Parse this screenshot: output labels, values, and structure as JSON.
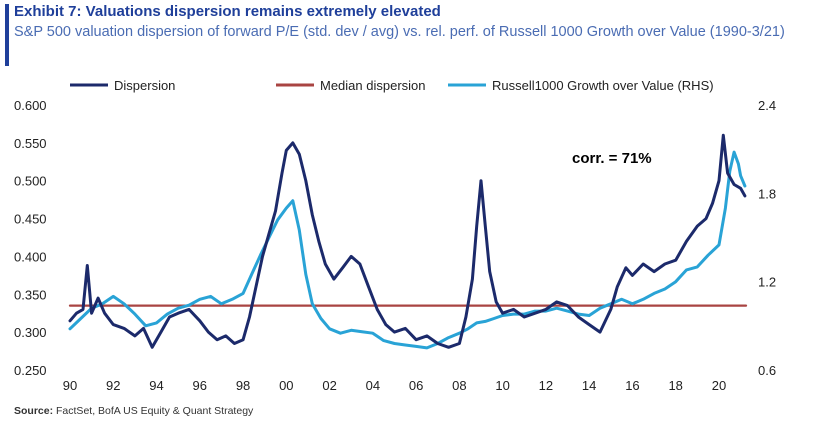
{
  "header": {
    "title": "Exhibit 7: Valuations dispersion remains extremely elevated",
    "subtitle": "S&P 500 valuation dispersion of forward P/E (std. dev / avg) vs. rel. perf. of Russell 1000 Growth over Value (1990-3/21)"
  },
  "footer": {
    "source_label": "Source:",
    "source_text": "FactSet, BofA US Equity & Quant Strategy"
  },
  "chart_data": {
    "type": "line",
    "title": "Exhibit 7: Valuations dispersion remains extremely elevated",
    "subtitle": "S&P 500 valuation dispersion of forward P/E (std. dev / avg) vs. rel. perf. of Russell 1000 Growth over Value (1990-3/21)",
    "xlim": [
      1990,
      2021.25
    ],
    "x_ticks": [
      1990,
      1992,
      1994,
      1996,
      1998,
      2000,
      2002,
      2004,
      2006,
      2008,
      2010,
      2012,
      2014,
      2016,
      2018,
      2020
    ],
    "x_tick_labels": [
      "90",
      "92",
      "94",
      "96",
      "98",
      "00",
      "02",
      "04",
      "06",
      "08",
      "10",
      "12",
      "14",
      "16",
      "18",
      "20"
    ],
    "y_left": {
      "lim": [
        0.25,
        0.6
      ],
      "ticks": [
        "0.250",
        "0.300",
        "0.350",
        "0.400",
        "0.450",
        "0.500",
        "0.550",
        "0.600"
      ]
    },
    "y_right": {
      "lim": [
        0.6,
        2.4
      ],
      "ticks": [
        "0.6",
        "1.2",
        "1.8",
        "2.4"
      ]
    },
    "grid": false,
    "legend_position": "top",
    "annotation": "corr. = 71%",
    "series": [
      {
        "name": "Dispersion",
        "axis": "left",
        "color": "#1c2a6b",
        "points": [
          [
            1990,
            0.315
          ],
          [
            1990.3,
            0.325
          ],
          [
            1990.6,
            0.33
          ],
          [
            1990.8,
            0.388
          ],
          [
            1991.0,
            0.325
          ],
          [
            1991.3,
            0.345
          ],
          [
            1991.6,
            0.325
          ],
          [
            1992.0,
            0.31
          ],
          [
            1992.5,
            0.305
          ],
          [
            1993.0,
            0.295
          ],
          [
            1993.4,
            0.305
          ],
          [
            1993.8,
            0.28
          ],
          [
            1994.2,
            0.3
          ],
          [
            1994.6,
            0.32
          ],
          [
            1995.0,
            0.325
          ],
          [
            1995.5,
            0.33
          ],
          [
            1996.0,
            0.315
          ],
          [
            1996.4,
            0.3
          ],
          [
            1996.8,
            0.29
          ],
          [
            1997.2,
            0.295
          ],
          [
            1997.6,
            0.285
          ],
          [
            1998.0,
            0.29
          ],
          [
            1998.3,
            0.32
          ],
          [
            1998.6,
            0.36
          ],
          [
            1998.9,
            0.4
          ],
          [
            1999.2,
            0.43
          ],
          [
            1999.5,
            0.46
          ],
          [
            1999.8,
            0.51
          ],
          [
            2000.0,
            0.54
          ],
          [
            2000.3,
            0.55
          ],
          [
            2000.6,
            0.535
          ],
          [
            2000.9,
            0.5
          ],
          [
            2001.2,
            0.455
          ],
          [
            2001.5,
            0.42
          ],
          [
            2001.8,
            0.39
          ],
          [
            2002.2,
            0.37
          ],
          [
            2002.6,
            0.385
          ],
          [
            2003.0,
            0.4
          ],
          [
            2003.4,
            0.39
          ],
          [
            2003.8,
            0.36
          ],
          [
            2004.2,
            0.33
          ],
          [
            2004.6,
            0.31
          ],
          [
            2005.0,
            0.3
          ],
          [
            2005.5,
            0.305
          ],
          [
            2006.0,
            0.29
          ],
          [
            2006.5,
            0.295
          ],
          [
            2007.0,
            0.285
          ],
          [
            2007.5,
            0.28
          ],
          [
            2008.0,
            0.285
          ],
          [
            2008.3,
            0.32
          ],
          [
            2008.6,
            0.37
          ],
          [
            2008.8,
            0.44
          ],
          [
            2009.0,
            0.5
          ],
          [
            2009.2,
            0.44
          ],
          [
            2009.4,
            0.38
          ],
          [
            2009.7,
            0.34
          ],
          [
            2010.0,
            0.325
          ],
          [
            2010.5,
            0.33
          ],
          [
            2011.0,
            0.32
          ],
          [
            2011.5,
            0.325
          ],
          [
            2012.0,
            0.33
          ],
          [
            2012.5,
            0.34
          ],
          [
            2013.0,
            0.335
          ],
          [
            2013.5,
            0.32
          ],
          [
            2014.0,
            0.31
          ],
          [
            2014.5,
            0.3
          ],
          [
            2015.0,
            0.33
          ],
          [
            2015.3,
            0.36
          ],
          [
            2015.7,
            0.385
          ],
          [
            2016.0,
            0.375
          ],
          [
            2016.5,
            0.39
          ],
          [
            2017.0,
            0.38
          ],
          [
            2017.5,
            0.39
          ],
          [
            2018.0,
            0.395
          ],
          [
            2018.5,
            0.42
          ],
          [
            2019.0,
            0.44
          ],
          [
            2019.4,
            0.45
          ],
          [
            2019.7,
            0.47
          ],
          [
            2020.0,
            0.5
          ],
          [
            2020.2,
            0.56
          ],
          [
            2020.4,
            0.51
          ],
          [
            2020.7,
            0.495
          ],
          [
            2021.0,
            0.49
          ],
          [
            2021.2,
            0.48
          ]
        ]
      },
      {
        "name": "Median dispersion",
        "axis": "left",
        "color": "#a94442",
        "points": [
          [
            1990,
            0.335
          ],
          [
            2021.25,
            0.335
          ]
        ]
      },
      {
        "name": "Russell1000  Growth over Value (RHS)",
        "axis": "right",
        "color": "#29a3d6",
        "points": [
          [
            1990,
            0.88
          ],
          [
            1990.5,
            0.95
          ],
          [
            1991.0,
            1.02
          ],
          [
            1991.5,
            1.05
          ],
          [
            1992.0,
            1.1
          ],
          [
            1992.5,
            1.05
          ],
          [
            1993.0,
            0.98
          ],
          [
            1993.5,
            0.9
          ],
          [
            1994.0,
            0.92
          ],
          [
            1994.5,
            0.98
          ],
          [
            1995.0,
            1.02
          ],
          [
            1995.5,
            1.04
          ],
          [
            1996.0,
            1.08
          ],
          [
            1996.5,
            1.1
          ],
          [
            1997.0,
            1.05
          ],
          [
            1997.5,
            1.08
          ],
          [
            1998.0,
            1.12
          ],
          [
            1998.4,
            1.25
          ],
          [
            1998.8,
            1.38
          ],
          [
            1999.2,
            1.5
          ],
          [
            1999.6,
            1.62
          ],
          [
            2000.0,
            1.7
          ],
          [
            2000.3,
            1.75
          ],
          [
            2000.6,
            1.55
          ],
          [
            2000.9,
            1.25
          ],
          [
            2001.2,
            1.05
          ],
          [
            2001.6,
            0.95
          ],
          [
            2002.0,
            0.88
          ],
          [
            2002.5,
            0.85
          ],
          [
            2003.0,
            0.87
          ],
          [
            2003.5,
            0.86
          ],
          [
            2004.0,
            0.85
          ],
          [
            2004.5,
            0.8
          ],
          [
            2005.0,
            0.78
          ],
          [
            2005.5,
            0.77
          ],
          [
            2006.0,
            0.76
          ],
          [
            2006.5,
            0.75
          ],
          [
            2007.0,
            0.78
          ],
          [
            2007.5,
            0.82
          ],
          [
            2008.0,
            0.85
          ],
          [
            2008.4,
            0.88
          ],
          [
            2008.8,
            0.92
          ],
          [
            2009.2,
            0.93
          ],
          [
            2009.6,
            0.95
          ],
          [
            2010.0,
            0.97
          ],
          [
            2010.5,
            0.98
          ],
          [
            2011.0,
            0.98
          ],
          [
            2011.5,
            1.0
          ],
          [
            2012.0,
            1.0
          ],
          [
            2012.5,
            1.02
          ],
          [
            2013.0,
            1.0
          ],
          [
            2013.5,
            0.98
          ],
          [
            2014.0,
            0.97
          ],
          [
            2014.5,
            1.02
          ],
          [
            2015.0,
            1.05
          ],
          [
            2015.5,
            1.08
          ],
          [
            2016.0,
            1.05
          ],
          [
            2016.5,
            1.08
          ],
          [
            2017.0,
            1.12
          ],
          [
            2017.5,
            1.15
          ],
          [
            2018.0,
            1.2
          ],
          [
            2018.5,
            1.28
          ],
          [
            2019.0,
            1.3
          ],
          [
            2019.5,
            1.38
          ],
          [
            2020.0,
            1.45
          ],
          [
            2020.3,
            1.7
          ],
          [
            2020.5,
            1.95
          ],
          [
            2020.7,
            2.08
          ],
          [
            2020.9,
            2.0
          ],
          [
            2021.0,
            1.92
          ],
          [
            2021.2,
            1.85
          ]
        ]
      }
    ]
  }
}
